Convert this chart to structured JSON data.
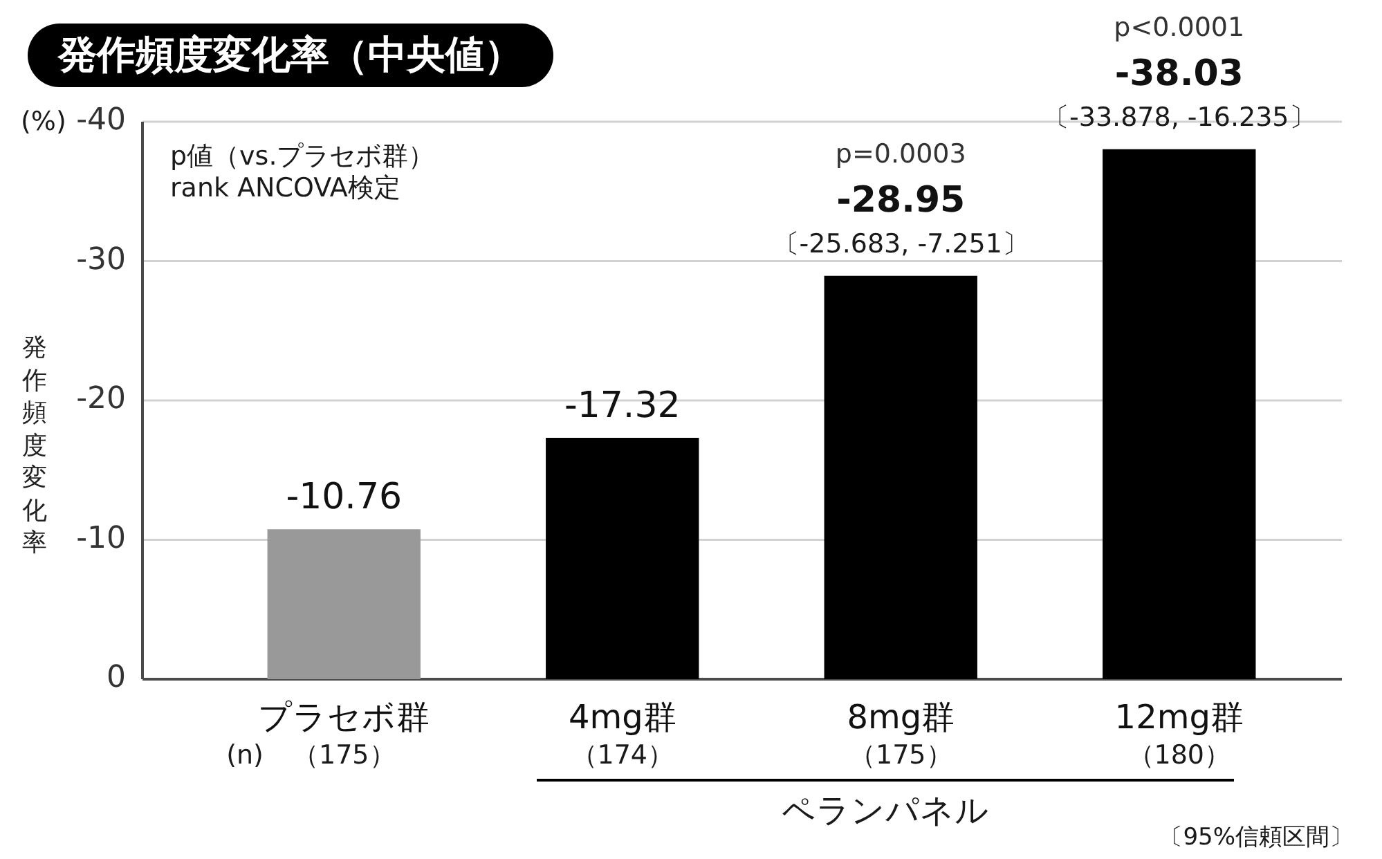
{
  "chart_data": {
    "type": "bar",
    "title": "発作頻度変化率（中央値）",
    "ylabel": "発作頻度変化率",
    "categories": [
      "プラセボ群",
      "4mg群",
      "8mg群",
      "12mg群"
    ],
    "values": [
      -10.76,
      -17.32,
      -28.95,
      -38.03
    ],
    "colors": [
      "#999999",
      "#000000",
      "#000000",
      "#000000"
    ],
    "ylim": [
      0,
      -40
    ],
    "yticks": [
      0,
      -10,
      -20,
      -30,
      -40
    ],
    "grid": "y",
    "data_labels": true,
    "annotations": [
      "(%)",
      "p値（vs.プラセボ群）",
      "rank ANCOVA検定",
      {
        "text": "〔-25.683, -7.251〕",
        "x": "8mg群",
        "y": -28.95
      },
      {
        "text": "〔-33.878, -16.235〕",
        "x": "12mg群",
        "y": -38.03
      },
      "p=0.0003",
      "p<0.0001",
      "（175）",
      "（174）",
      "（175）",
      "（180）",
      "(n)",
      "ペランパネル",
      "〔95%信頼区間〕"
    ]
  }
}
